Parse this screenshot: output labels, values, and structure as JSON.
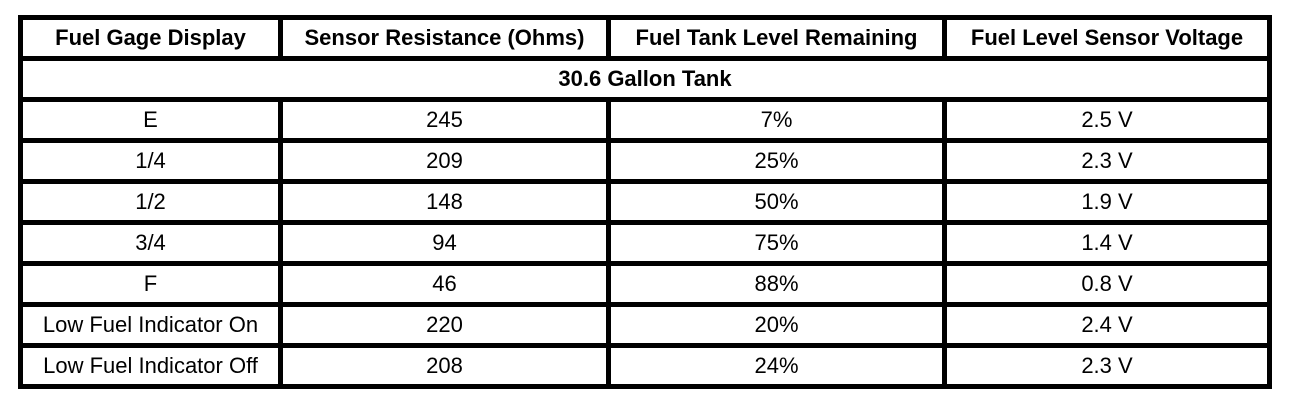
{
  "colors": {
    "background": "#ffffff",
    "border": "#000000",
    "text": "#000000"
  },
  "chart_data": {
    "type": "table",
    "title": "30.6 Gallon Tank",
    "columns": [
      "Fuel Gage Display",
      "Sensor Resistance (Ohms)",
      "Fuel Tank Level Remaining",
      "Fuel Level Sensor Voltage"
    ],
    "rows": [
      [
        "E",
        "245",
        "7%",
        "2.5 V"
      ],
      [
        "1/4",
        "209",
        "25%",
        "2.3 V"
      ],
      [
        "1/2",
        "148",
        "50%",
        "1.9 V"
      ],
      [
        "3/4",
        "94",
        "75%",
        "1.4 V"
      ],
      [
        "F",
        "46",
        "88%",
        "0.8 V"
      ],
      [
        "Low Fuel Indicator On",
        "220",
        "20%",
        "2.4 V"
      ],
      [
        "Low Fuel Indicator Off",
        "208",
        "24%",
        "2.3 V"
      ]
    ]
  }
}
